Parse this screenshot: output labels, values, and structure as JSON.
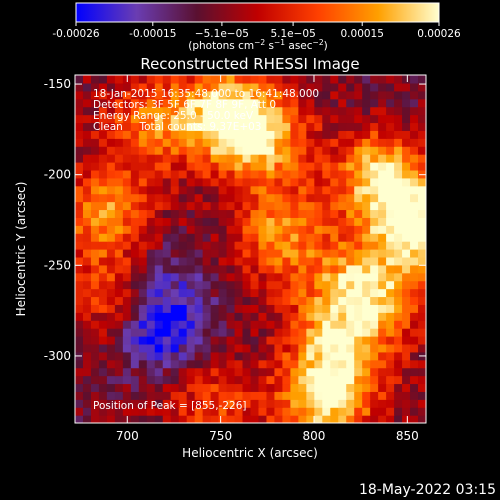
{
  "colorbar": {
    "tick_labels": [
      "-0.00026",
      "-0.00015",
      "−5.1e−05",
      "5.1e−05",
      "0.00015",
      "0.00026"
    ],
    "tick_values": [
      -0.00026,
      -0.00015,
      -5.1e-05,
      5.1e-05,
      0.00015,
      0.00026
    ],
    "range": [
      -0.00026,
      0.00026
    ],
    "units_prefix": "(photons cm",
    "units_exp1": "−2",
    "units_mid": " s",
    "units_exp2": "−1",
    "units_mid2": " asec",
    "units_exp3": "−2",
    "units_suffix": ")",
    "colors": [
      "#0000ff",
      "#6a3db2",
      "#5a1030",
      "#c00000",
      "#ff4000",
      "#ffa000",
      "#ffffd0"
    ]
  },
  "chart_data": {
    "type": "heatmap",
    "title": "Reconstructed RHESSI Image",
    "xlabel": "Heliocentric X (arcsec)",
    "ylabel": "Heliocentric Y (arcsec)",
    "xlim": [
      672,
      860
    ],
    "ylim": [
      -337,
      -145
    ],
    "x_ticks": [
      700,
      750,
      800,
      850
    ],
    "y_ticks": [
      -150,
      -200,
      -250,
      -300
    ],
    "annotations": [
      "18-Jan-2015 16:35:48.000 to 16:41:48.000",
      "Detectors: 3F 5F 6F 7F 8F 9F, Att 0",
      "Energy Range: 25.0 - 50.0 keV",
      "Clean     Total counts: 9.37E+03"
    ],
    "peak_label": "Position of Peak = [855,-226]",
    "peak": [
      855,
      -226
    ],
    "value_range": [
      -0.00026,
      0.00026
    ],
    "features": [
      {
        "x": 855,
        "y": -226,
        "value": 0.00026
      },
      {
        "x": 835,
        "y": -200,
        "value": 0.0002
      },
      {
        "x": 830,
        "y": -265,
        "value": 0.00022
      },
      {
        "x": 812,
        "y": -300,
        "value": 0.0002
      },
      {
        "x": 805,
        "y": -330,
        "value": 0.00018
      },
      {
        "x": 770,
        "y": -178,
        "value": 0.00022
      },
      {
        "x": 750,
        "y": -165,
        "value": 0.00018
      },
      {
        "x": 782,
        "y": -230,
        "value": 0.00014
      },
      {
        "x": 688,
        "y": -220,
        "value": 0.00016
      },
      {
        "x": 695,
        "y": -265,
        "value": 0.00014
      },
      {
        "x": 712,
        "y": -172,
        "value": 0.00012
      },
      {
        "x": 745,
        "y": -325,
        "value": 8e-05
      },
      {
        "x": 718,
        "y": -285,
        "value": -0.00026
      },
      {
        "x": 712,
        "y": -258,
        "value": -0.00018
      },
      {
        "x": 735,
        "y": -215,
        "value": -6e-05
      },
      {
        "x": 850,
        "y": -160,
        "value": -8e-05
      },
      {
        "x": 848,
        "y": -310,
        "value": -5e-05
      },
      {
        "x": 800,
        "y": -260,
        "value": 2e-05
      }
    ]
  },
  "footer": {
    "timestamp": "18-May-2022 03:15"
  }
}
